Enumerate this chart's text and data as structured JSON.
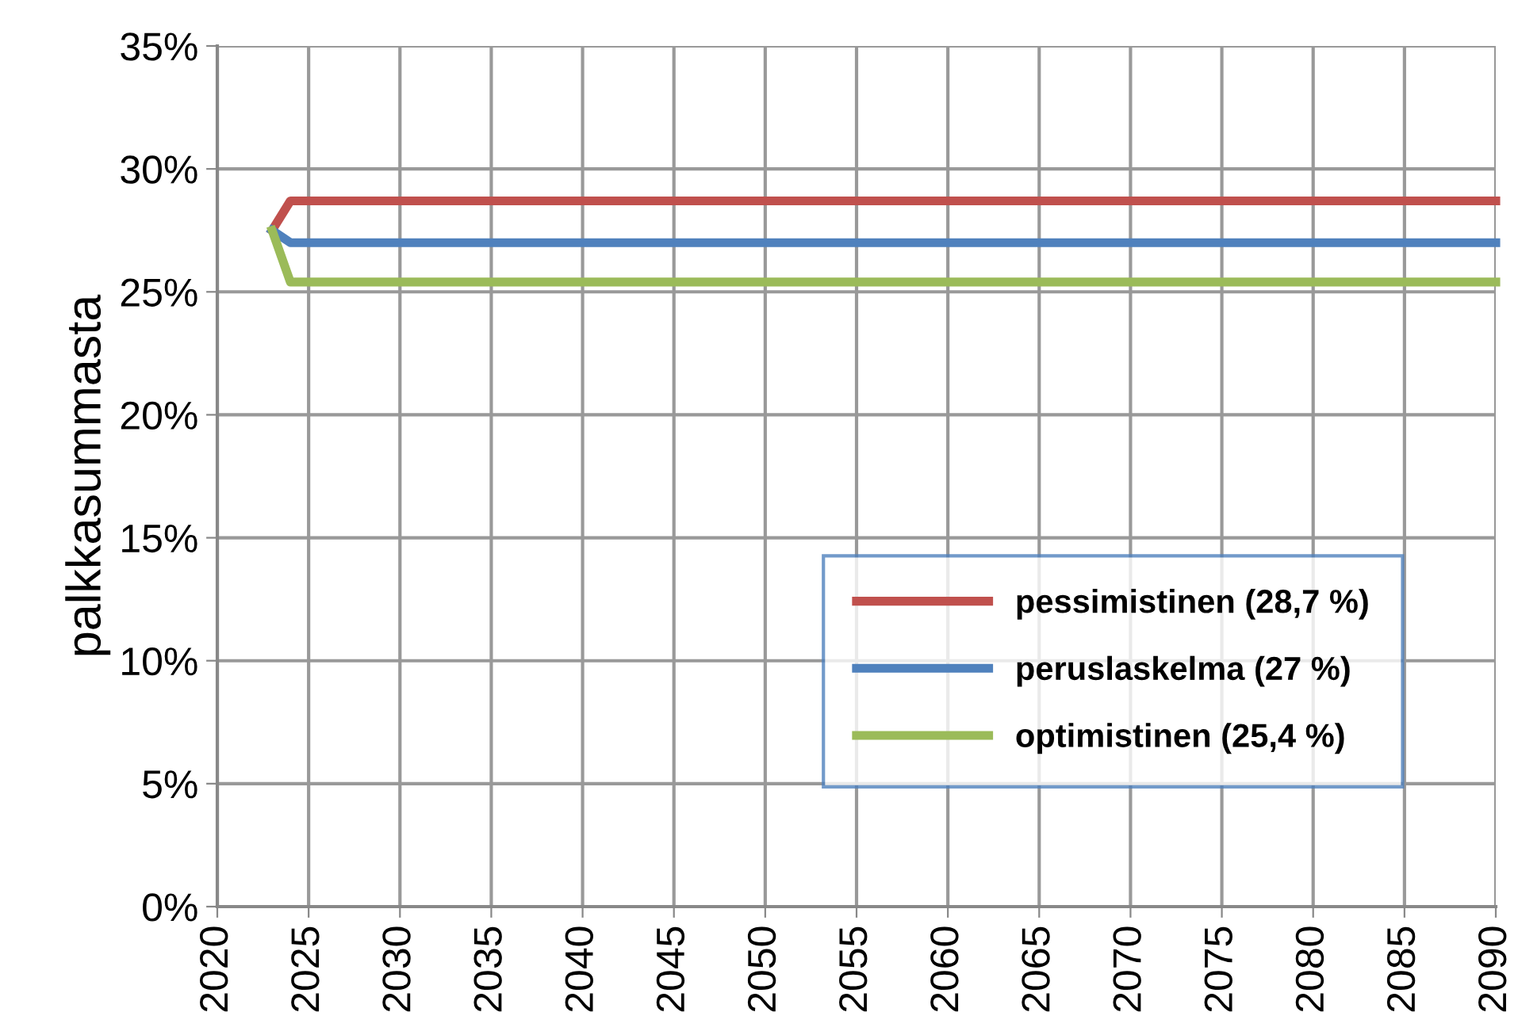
{
  "chart_data": {
    "type": "line",
    "ylabel": "palkkasummasta",
    "x": [
      2023,
      2024,
      2090
    ],
    "series": [
      {
        "name": "pessimistinen (28,7 %)",
        "color": "#c0504d",
        "values": [
          27.5,
          28.7,
          28.7
        ]
      },
      {
        "name": "peruslaskelma (27 %)",
        "color": "#4f81bd",
        "values": [
          27.5,
          27.0,
          27.0
        ]
      },
      {
        "name": "optimistinen (25,4 %)",
        "color": "#9bbb59",
        "values": [
          27.5,
          25.4,
          25.4
        ]
      }
    ],
    "xlim": [
      2020,
      2090
    ],
    "xticks": [
      2020,
      2025,
      2030,
      2035,
      2040,
      2045,
      2050,
      2055,
      2060,
      2065,
      2070,
      2075,
      2080,
      2085,
      2090
    ],
    "ylim": [
      0,
      35
    ],
    "yticks": [
      {
        "value": 0,
        "label": "0%"
      },
      {
        "value": 5,
        "label": "5%"
      },
      {
        "value": 10,
        "label": "10%"
      },
      {
        "value": 15,
        "label": "15%"
      },
      {
        "value": 20,
        "label": "20%"
      },
      {
        "value": 25,
        "label": "25%"
      },
      {
        "value": 30,
        "label": "30%"
      },
      {
        "value": 35,
        "label": "35%"
      }
    ],
    "grid": true,
    "legend": "bottom right",
    "marker": "none",
    "line_style": "solid"
  }
}
